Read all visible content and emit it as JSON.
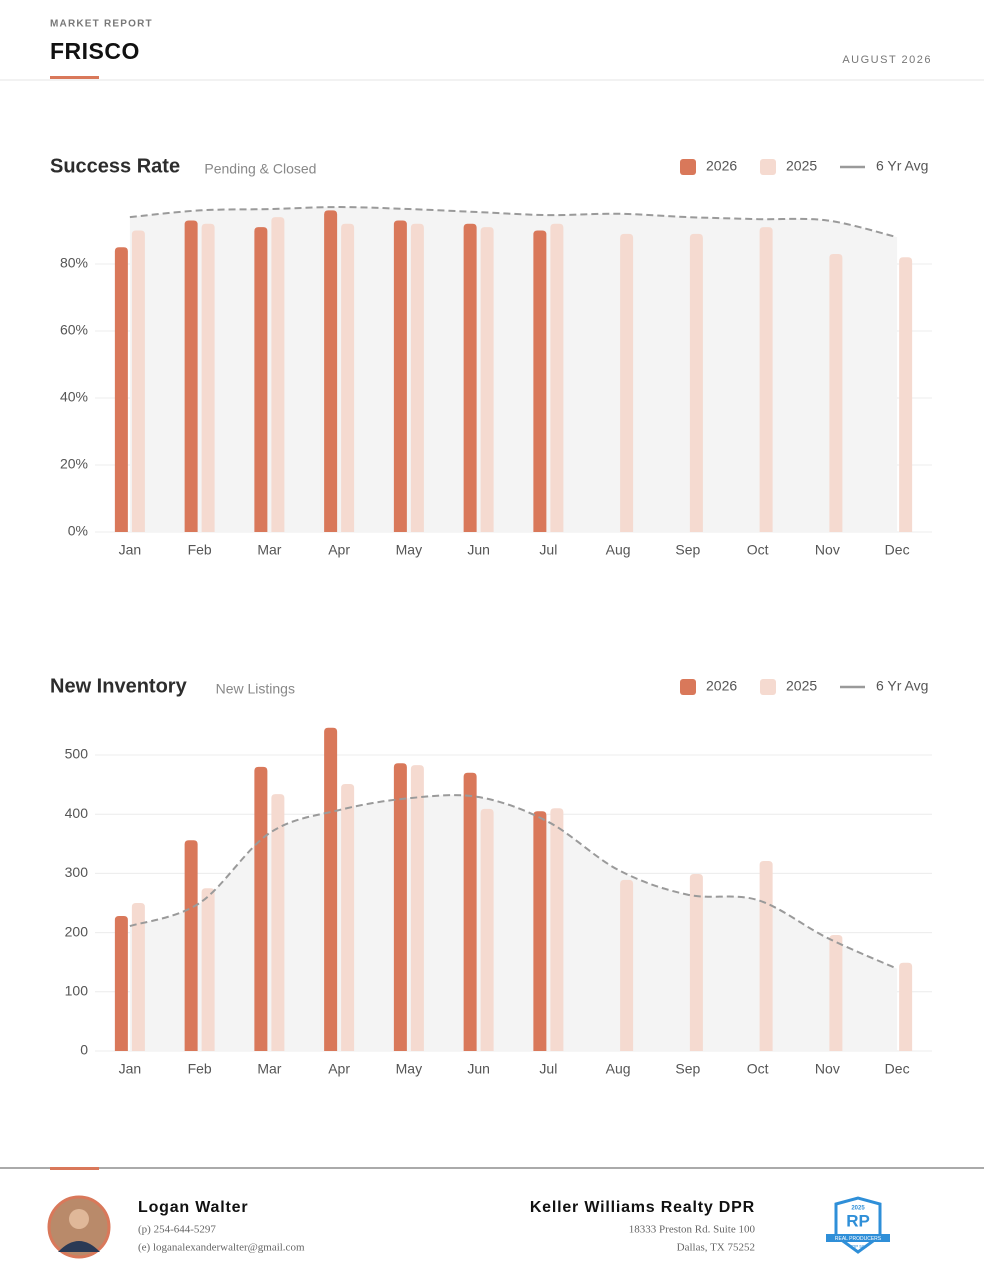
{
  "header": {
    "kicker": "MARKET REPORT",
    "title": "FRISCO",
    "date": "AUGUST 2026"
  },
  "chart_data": [
    {
      "type": "bar",
      "title": "Success Rate",
      "subtitle": "Pending & Closed",
      "categories": [
        "Jan",
        "Feb",
        "Mar",
        "Apr",
        "May",
        "Jun",
        "Jul",
        "Aug",
        "Sep",
        "Oct",
        "Nov",
        "Dec"
      ],
      "series": [
        {
          "name": "2026",
          "color": "#d9785a",
          "values": [
            85,
            93,
            91,
            96,
            93,
            92,
            90,
            null,
            null,
            null,
            null,
            null
          ]
        },
        {
          "name": "2025",
          "color": "#f5dad0",
          "values": [
            90,
            92,
            94,
            92,
            92,
            91,
            92,
            89,
            89,
            91,
            83,
            82
          ]
        },
        {
          "name": "6 Yr Avg",
          "type": "line",
          "color": "#9a9a9a",
          "values": [
            94,
            96,
            96.4,
            97,
            96.4,
            95.5,
            94.6,
            95,
            94,
            93.4,
            93,
            88
          ]
        }
      ],
      "ylim": [
        0,
        100
      ],
      "yticks": [
        {
          "value": 0,
          "label": "0%"
        },
        {
          "value": 20,
          "label": "20%"
        },
        {
          "value": 40,
          "label": "40%"
        },
        {
          "value": 60,
          "label": "60%"
        },
        {
          "value": 80,
          "label": "80%"
        }
      ],
      "grid": true
    },
    {
      "type": "bar",
      "title": "New Inventory",
      "subtitle": "New Listings",
      "categories": [
        "Jan",
        "Feb",
        "Mar",
        "Apr",
        "May",
        "Jun",
        "Jul",
        "Aug",
        "Sep",
        "Oct",
        "Nov",
        "Dec"
      ],
      "series": [
        {
          "name": "2026",
          "color": "#d9785a",
          "values": [
            228,
            356,
            480,
            546,
            486,
            470,
            405,
            null,
            null,
            null,
            null,
            null
          ]
        },
        {
          "name": "2025",
          "color": "#f5dad0",
          "values": [
            250,
            275,
            434,
            451,
            483,
            409,
            410,
            289,
            299,
            321,
            196,
            149
          ]
        },
        {
          "name": "6 Yr Avg",
          "type": "line",
          "color": "#9a9a9a",
          "values": [
            211,
            250,
            368,
            407,
            427,
            429,
            387,
            306,
            264,
            255,
            191,
            139
          ]
        }
      ],
      "ylim": [
        0,
        560
      ],
      "yticks": [
        0,
        100,
        200,
        300,
        400,
        500
      ],
      "grid": true
    }
  ],
  "footer": {
    "agent": "Logan Walter",
    "phone": "(p) 254-644-5297",
    "email": "(e) loganalexanderwalter@gmail.com",
    "company": "Keller Williams Realty DPR",
    "address1": "18333 Preston Rd. Suite 100",
    "address2": "Dallas, TX 75252",
    "badge": {
      "year": "2025",
      "logo": "RP",
      "line1": "REAL PRODUCERS",
      "line2": "TOP 500"
    }
  }
}
